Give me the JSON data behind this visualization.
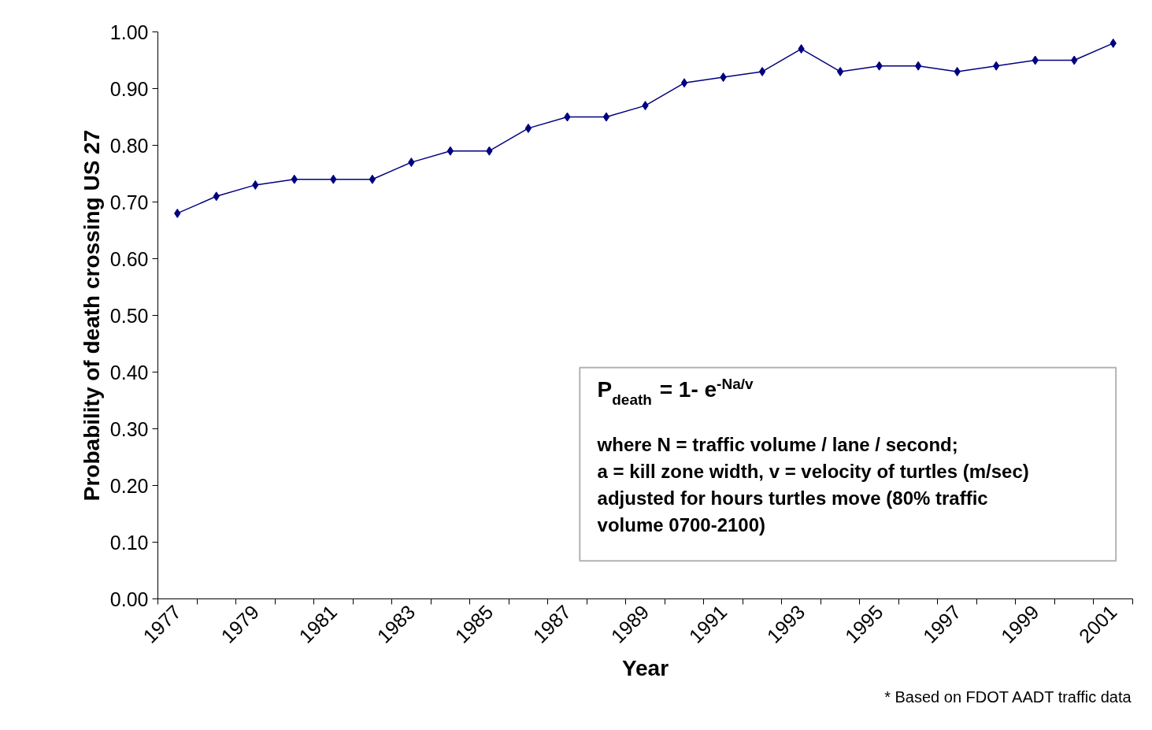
{
  "chart_data": {
    "type": "line",
    "xlabel": "Year",
    "ylabel": "Probability of death crossing US 27",
    "categories": [
      "1977",
      null,
      "1979",
      null,
      "1981",
      null,
      "1983",
      null,
      "1985",
      null,
      "1987",
      null,
      "1989",
      null,
      "1991",
      null,
      "1993",
      null,
      "1995",
      null,
      "1997",
      null,
      "1999",
      null,
      "2001"
    ],
    "series": [
      {
        "color": "#000080",
        "values": [
          0.68,
          0.71,
          0.73,
          0.74,
          0.74,
          0.74,
          0.77,
          0.79,
          0.79,
          0.83,
          0.85,
          0.85,
          0.87,
          0.91,
          0.92,
          0.93,
          0.97,
          0.93,
          0.94,
          0.94,
          0.93,
          0.94,
          0.95,
          0.95,
          0.98
        ]
      }
    ],
    "ylim": [
      0,
      1
    ],
    "yticks": [
      {
        "value": 0,
        "label": "0.00"
      },
      {
        "value": 0.1,
        "label": "0.10"
      },
      {
        "value": 0.2,
        "label": "0.20"
      },
      {
        "value": 0.3,
        "label": "0.30"
      },
      {
        "value": 0.4,
        "label": "0.40"
      },
      {
        "value": 0.5,
        "label": "0.50"
      },
      {
        "value": 0.6,
        "label": "0.60"
      },
      {
        "value": 0.7,
        "label": "0.70"
      },
      {
        "value": 0.8,
        "label": "0.80"
      },
      {
        "value": 0.9,
        "label": "0.90"
      },
      {
        "value": 1,
        "label": "1.00"
      }
    ],
    "grid": false,
    "marker": "diamond",
    "line_style": "solid",
    "annotations": [
      "P$_{death}$ = 1- e$^{-Na/v}$",
      "where N = traffic volume / lane / second;",
      "a = kill zone width, v = velocity of turtles (m/sec)",
      "adjusted for hours turtles move (80% traffic",
      "volume 0700-2100)",
      "* Based on FDOT AADT traffic data"
    ]
  }
}
